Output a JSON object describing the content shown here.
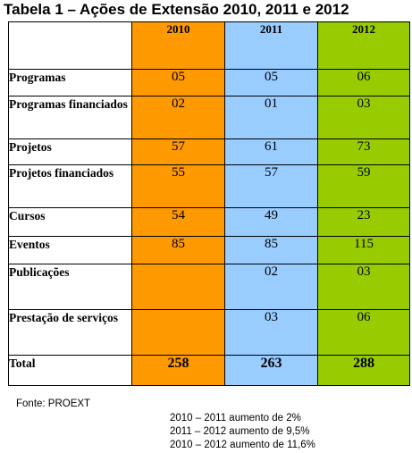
{
  "title": "Tabela 1 – Ações de Extensão 2010, 2011 e 2012",
  "table": {
    "header": [
      "",
      "2010",
      "2011",
      "2012"
    ],
    "rows": [
      {
        "label": "Programas",
        "values": [
          "05",
          "05",
          "06"
        ]
      },
      {
        "label": "Programas financiados",
        "values": [
          "02",
          "01",
          "03"
        ]
      },
      {
        "label": "Projetos",
        "values": [
          "57",
          "61",
          "73"
        ]
      },
      {
        "label": "Projetos financiados",
        "values": [
          "55",
          "57",
          "59"
        ]
      },
      {
        "label": "Cursos",
        "values": [
          "54",
          "49",
          "23"
        ]
      },
      {
        "label": "Eventos",
        "values": [
          "85",
          "85",
          "115"
        ]
      },
      {
        "label": "Publicações",
        "values": [
          "",
          "02",
          "03"
        ]
      },
      {
        "label": "Prestação de serviços",
        "values": [
          "",
          "03",
          "06"
        ]
      }
    ],
    "total": {
      "label": "Total",
      "values": [
        "258",
        "263",
        "288"
      ]
    }
  },
  "colors": {
    "col_2010": "#ff9900",
    "col_2011": "#99ccff",
    "col_2012": "#99cc00"
  },
  "source": "Fonte: PROEXT",
  "notes": [
    "2010 – 2011 aumento de 2%",
    "2011 – 2012 aumento de 9,5%",
    "2010 – 2012 aumento de 11,6%"
  ]
}
